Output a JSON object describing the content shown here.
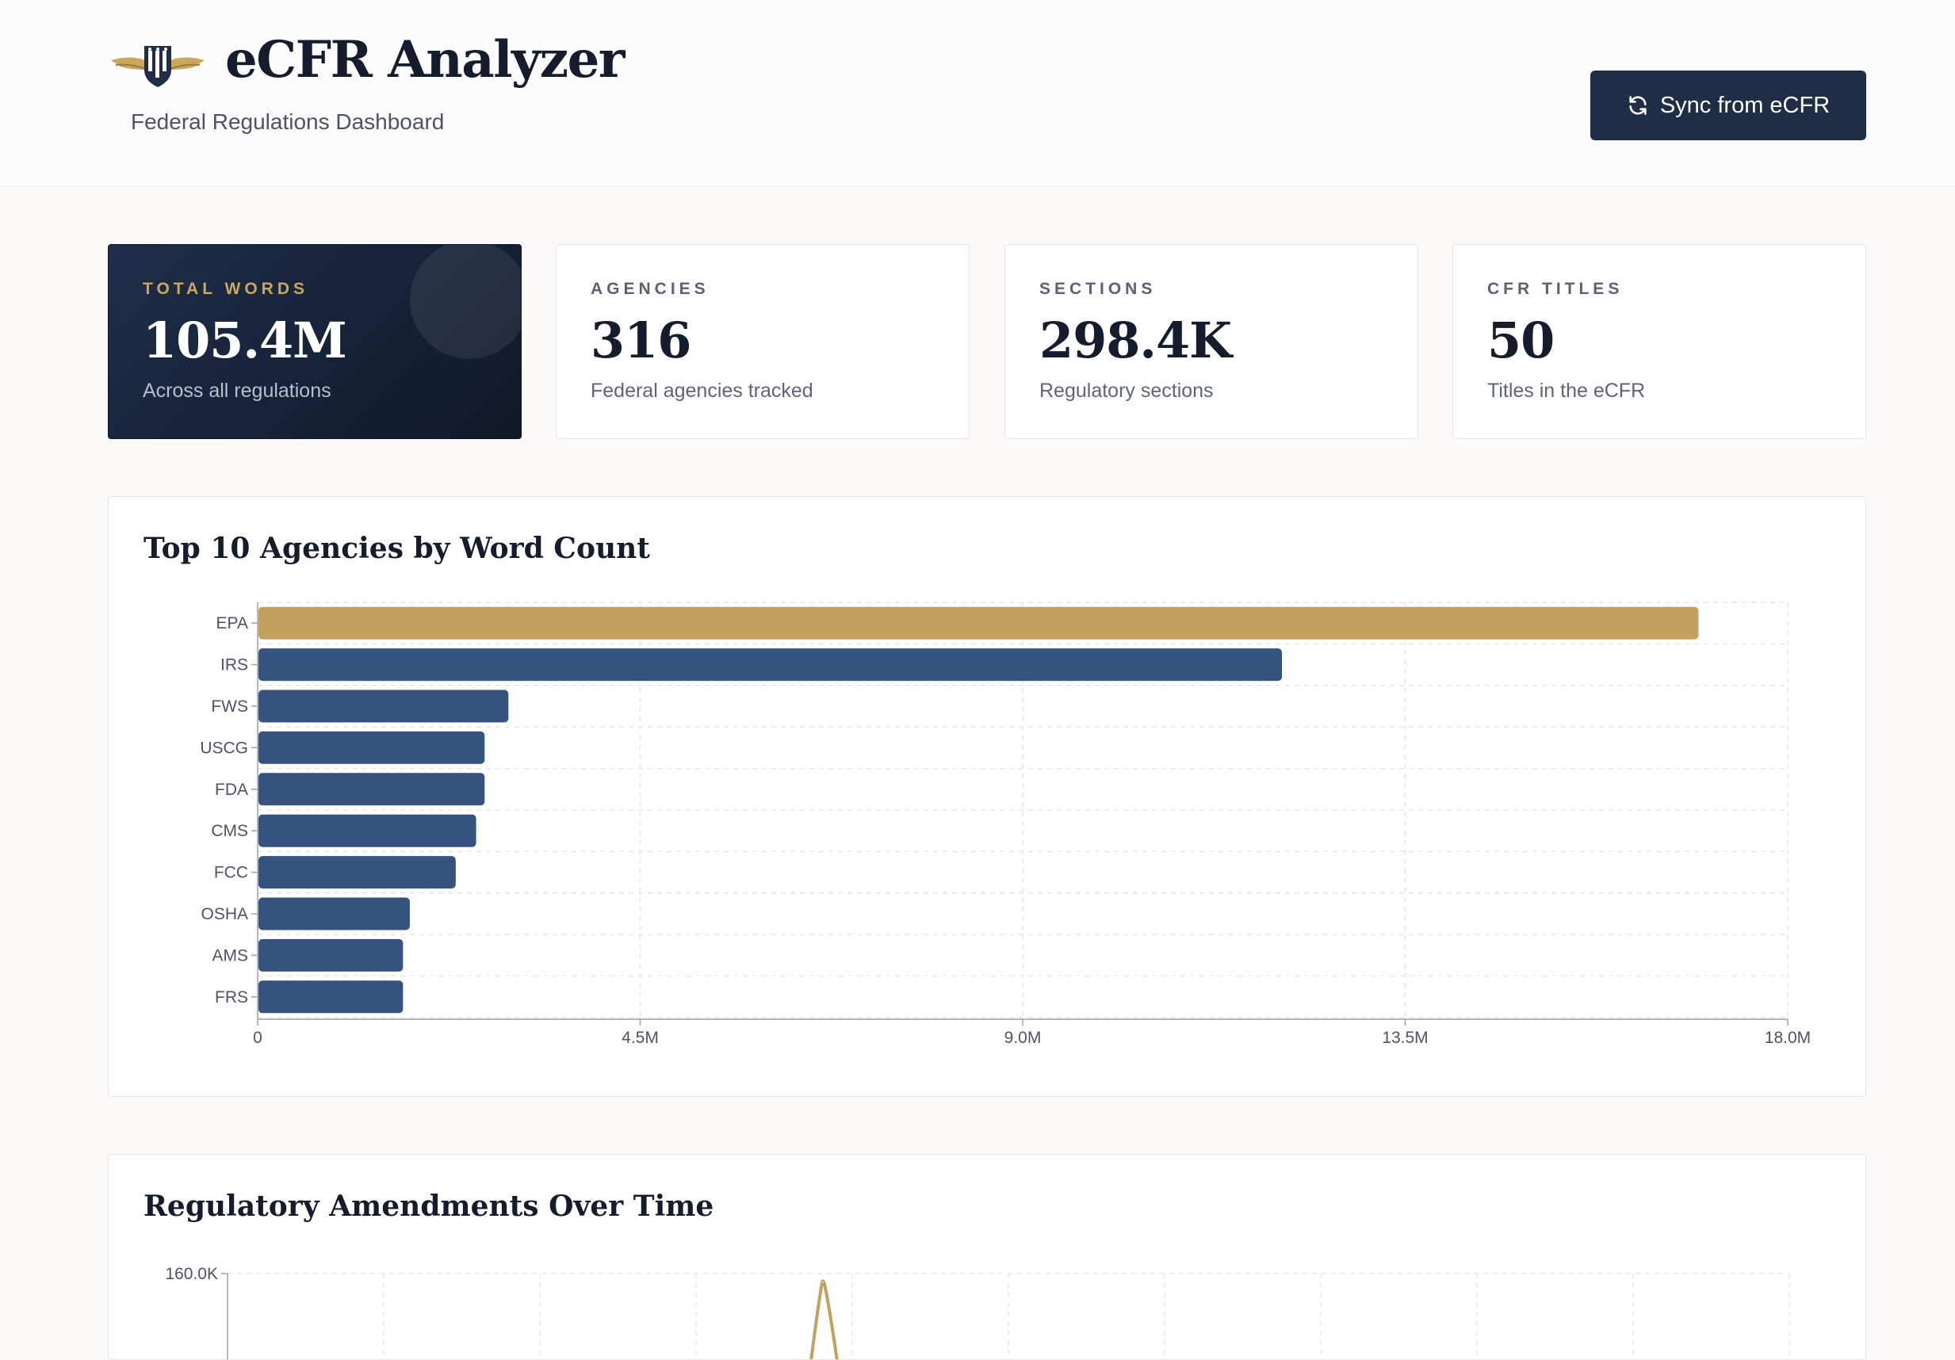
{
  "header": {
    "title": "eCFR Analyzer",
    "subtitle": "Federal Regulations Dashboard",
    "sync_label": "Sync from eCFR"
  },
  "stats": [
    {
      "label": "TOTAL WORDS",
      "value": "105.4M",
      "desc": "Across all regulations"
    },
    {
      "label": "AGENCIES",
      "value": "316",
      "desc": "Federal agencies tracked"
    },
    {
      "label": "SECTIONS",
      "value": "298.4K",
      "desc": "Regulatory sections"
    },
    {
      "label": "CFR TITLES",
      "value": "50",
      "desc": "Titles in the eCFR"
    }
  ],
  "colors": {
    "navy": "#1f2d46",
    "bar": "#36527f",
    "gold": "#c3a15c"
  },
  "icons": {
    "logo": "eagle-shield-icon",
    "sync": "refresh-icon"
  },
  "chart_data": [
    {
      "type": "bar",
      "orientation": "horizontal",
      "title": "Top 10 Agencies by Word Count",
      "categories": [
        "EPA",
        "IRS",
        "FWS",
        "USCG",
        "FDA",
        "CMS",
        "FCC",
        "OSHA",
        "AMS",
        "FRS"
      ],
      "values": [
        16950000,
        12050000,
        2950000,
        2670000,
        2670000,
        2570000,
        2330000,
        1790000,
        1710000,
        1710000
      ],
      "highlight": "EPA",
      "xlim": [
        0,
        18000000
      ],
      "xticks": [
        "0",
        "4.5M",
        "9.0M",
        "13.5M",
        "18.0M"
      ],
      "grid": true
    },
    {
      "type": "line",
      "title": "Regulatory Amendments Over Time",
      "yticks": [
        "160.0K"
      ],
      "grid": true
    }
  ]
}
